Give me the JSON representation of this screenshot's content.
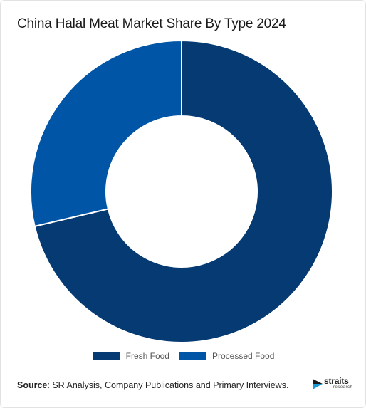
{
  "chart_data": {
    "type": "pie",
    "title": "China Halal Meat Market Share By Type 2024",
    "donut": true,
    "categories": [
      "Fresh Food",
      "Processed Food"
    ],
    "values": [
      71.3,
      28.7
    ],
    "colors": [
      "#063a73",
      "#0055a6"
    ],
    "legend_position": "bottom"
  },
  "source": {
    "label": "Source",
    "text": ": SR Analysis, Company Publications and Primary Interviews."
  },
  "logo": {
    "name": "straits",
    "sub": "research",
    "icon": "straits-logo-icon"
  }
}
